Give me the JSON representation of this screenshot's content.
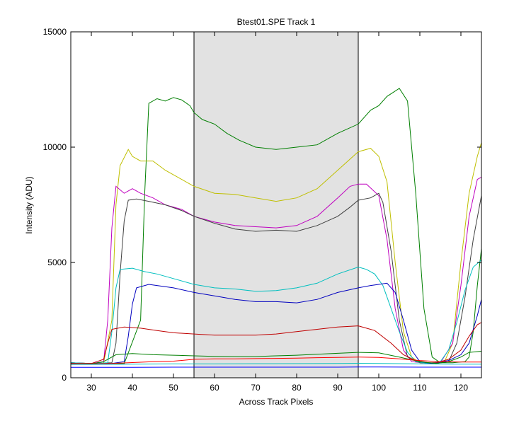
{
  "chart_data": {
    "type": "line",
    "title": "Btest01.SPE   Track 1",
    "xlabel": "Across Track Pixels",
    "ylabel": "Intensity (ADU)",
    "xlim": [
      25,
      125
    ],
    "ylim": [
      0,
      15000
    ],
    "xticks": [
      30,
      40,
      50,
      60,
      70,
      80,
      90,
      100,
      110,
      120
    ],
    "yticks": [
      0,
      5000,
      10000,
      15000
    ],
    "grid": false,
    "legend": "none",
    "shaded_region": {
      "x_start": 55,
      "x_end": 95,
      "color": "#e2e2e2"
    },
    "series": [
      {
        "color": "#007f00",
        "points": [
          [
            25,
            650
          ],
          [
            30,
            620
          ],
          [
            34,
            620
          ],
          [
            38,
            610
          ],
          [
            42,
            2500
          ],
          [
            43,
            8000
          ],
          [
            44,
            11900
          ],
          [
            46,
            12100
          ],
          [
            48,
            12000
          ],
          [
            50,
            12150
          ],
          [
            52,
            12050
          ],
          [
            54,
            11800
          ],
          [
            55,
            11500
          ],
          [
            57,
            11200
          ],
          [
            60,
            11000
          ],
          [
            63,
            10600
          ],
          [
            66,
            10300
          ],
          [
            70,
            10000
          ],
          [
            75,
            9900
          ],
          [
            80,
            10000
          ],
          [
            85,
            10100
          ],
          [
            90,
            10600
          ],
          [
            95,
            11000
          ],
          [
            98,
            11600
          ],
          [
            100,
            11800
          ],
          [
            102,
            12200
          ],
          [
            105,
            12550
          ],
          [
            107,
            12000
          ],
          [
            109,
            8000
          ],
          [
            111,
            3000
          ],
          [
            113,
            900
          ],
          [
            115,
            650
          ],
          [
            118,
            650
          ],
          [
            121,
            700
          ],
          [
            122,
            900
          ],
          [
            123,
            2000
          ],
          [
            124,
            4000
          ],
          [
            125,
            5600
          ]
        ]
      },
      {
        "color": "#bfbf00",
        "points": [
          [
            25,
            650
          ],
          [
            30,
            620
          ],
          [
            33,
            650
          ],
          [
            35,
            2500
          ],
          [
            36,
            7500
          ],
          [
            37,
            9200
          ],
          [
            39,
            9900
          ],
          [
            40,
            9600
          ],
          [
            42,
            9400
          ],
          [
            45,
            9400
          ],
          [
            48,
            9000
          ],
          [
            52,
            8600
          ],
          [
            55,
            8300
          ],
          [
            60,
            8000
          ],
          [
            65,
            7950
          ],
          [
            70,
            7800
          ],
          [
            75,
            7650
          ],
          [
            80,
            7800
          ],
          [
            85,
            8200
          ],
          [
            90,
            9000
          ],
          [
            95,
            9800
          ],
          [
            98,
            9950
          ],
          [
            100,
            9600
          ],
          [
            102,
            8500
          ],
          [
            104,
            5000
          ],
          [
            106,
            2000
          ],
          [
            108,
            900
          ],
          [
            110,
            650
          ],
          [
            113,
            620
          ],
          [
            116,
            700
          ],
          [
            118,
            1500
          ],
          [
            120,
            5000
          ],
          [
            122,
            8000
          ],
          [
            124,
            9600
          ],
          [
            125,
            10200
          ]
        ]
      },
      {
        "color": "#bf00bf",
        "points": [
          [
            25,
            650
          ],
          [
            30,
            620
          ],
          [
            33,
            700
          ],
          [
            34,
            2500
          ],
          [
            35,
            6500
          ],
          [
            36,
            8300
          ],
          [
            38,
            8000
          ],
          [
            40,
            8200
          ],
          [
            42,
            8000
          ],
          [
            45,
            7800
          ],
          [
            48,
            7500
          ],
          [
            52,
            7300
          ],
          [
            55,
            7000
          ],
          [
            60,
            6750
          ],
          [
            65,
            6600
          ],
          [
            70,
            6550
          ],
          [
            75,
            6500
          ],
          [
            80,
            6600
          ],
          [
            85,
            7000
          ],
          [
            90,
            7800
          ],
          [
            93,
            8300
          ],
          [
            95,
            8400
          ],
          [
            97,
            8400
          ],
          [
            100,
            7900
          ],
          [
            102,
            6000
          ],
          [
            104,
            3000
          ],
          [
            106,
            1200
          ],
          [
            108,
            700
          ],
          [
            112,
            620
          ],
          [
            115,
            650
          ],
          [
            118,
            1500
          ],
          [
            120,
            4000
          ],
          [
            122,
            7000
          ],
          [
            124,
            8600
          ],
          [
            125,
            8700
          ]
        ]
      },
      {
        "color": "#404040",
        "points": [
          [
            25,
            650
          ],
          [
            30,
            620
          ],
          [
            35,
            650
          ],
          [
            36,
            1500
          ],
          [
            37,
            4500
          ],
          [
            38,
            6800
          ],
          [
            39,
            7700
          ],
          [
            41,
            7750
          ],
          [
            44,
            7650
          ],
          [
            48,
            7500
          ],
          [
            52,
            7250
          ],
          [
            55,
            7000
          ],
          [
            60,
            6700
          ],
          [
            65,
            6450
          ],
          [
            70,
            6350
          ],
          [
            75,
            6400
          ],
          [
            80,
            6350
          ],
          [
            85,
            6600
          ],
          [
            90,
            7000
          ],
          [
            93,
            7400
          ],
          [
            95,
            7700
          ],
          [
            98,
            7800
          ],
          [
            100,
            8000
          ],
          [
            101,
            7600
          ],
          [
            103,
            5500
          ],
          [
            105,
            2500
          ],
          [
            107,
            900
          ],
          [
            110,
            650
          ],
          [
            114,
            620
          ],
          [
            117,
            700
          ],
          [
            119,
            1500
          ],
          [
            121,
            3500
          ],
          [
            123,
            6000
          ],
          [
            125,
            7900
          ]
        ]
      },
      {
        "color": "#00bfbf",
        "points": [
          [
            25,
            650
          ],
          [
            30,
            620
          ],
          [
            34,
            650
          ],
          [
            35,
            2000
          ],
          [
            36,
            3900
          ],
          [
            37,
            4700
          ],
          [
            40,
            4750
          ],
          [
            43,
            4600
          ],
          [
            46,
            4500
          ],
          [
            50,
            4300
          ],
          [
            55,
            4050
          ],
          [
            60,
            3900
          ],
          [
            65,
            3850
          ],
          [
            70,
            3750
          ],
          [
            75,
            3780
          ],
          [
            80,
            3900
          ],
          [
            85,
            4100
          ],
          [
            90,
            4500
          ],
          [
            95,
            4800
          ],
          [
            97,
            4700
          ],
          [
            99,
            4500
          ],
          [
            101,
            4000
          ],
          [
            103,
            3000
          ],
          [
            105,
            2000
          ],
          [
            107,
            1100
          ],
          [
            109,
            700
          ],
          [
            112,
            620
          ],
          [
            115,
            700
          ],
          [
            117,
            1200
          ],
          [
            119,
            2400
          ],
          [
            121,
            3800
          ],
          [
            123,
            4800
          ],
          [
            125,
            5100
          ]
        ]
      },
      {
        "color": "#0000bf",
        "points": [
          [
            25,
            620
          ],
          [
            30,
            600
          ],
          [
            35,
            620
          ],
          [
            38,
            700
          ],
          [
            39,
            1800
          ],
          [
            40,
            3200
          ],
          [
            41,
            3900
          ],
          [
            44,
            4050
          ],
          [
            46,
            4000
          ],
          [
            50,
            3900
          ],
          [
            55,
            3700
          ],
          [
            60,
            3550
          ],
          [
            65,
            3400
          ],
          [
            70,
            3300
          ],
          [
            75,
            3300
          ],
          [
            80,
            3250
          ],
          [
            85,
            3400
          ],
          [
            90,
            3700
          ],
          [
            95,
            3900
          ],
          [
            98,
            4000
          ],
          [
            100,
            4050
          ],
          [
            102,
            4100
          ],
          [
            104,
            3700
          ],
          [
            106,
            2500
          ],
          [
            108,
            1200
          ],
          [
            110,
            700
          ],
          [
            113,
            620
          ],
          [
            117,
            750
          ],
          [
            120,
            1000
          ],
          [
            122,
            1500
          ],
          [
            124,
            2700
          ],
          [
            125,
            3400
          ]
        ]
      },
      {
        "color": "#bf0000",
        "points": [
          [
            25,
            620
          ],
          [
            30,
            620
          ],
          [
            33,
            800
          ],
          [
            34,
            1500
          ],
          [
            35,
            2100
          ],
          [
            38,
            2200
          ],
          [
            42,
            2150
          ],
          [
            46,
            2050
          ],
          [
            50,
            1950
          ],
          [
            55,
            1900
          ],
          [
            60,
            1850
          ],
          [
            65,
            1850
          ],
          [
            70,
            1850
          ],
          [
            75,
            1900
          ],
          [
            80,
            2000
          ],
          [
            85,
            2100
          ],
          [
            90,
            2200
          ],
          [
            95,
            2250
          ],
          [
            99,
            2050
          ],
          [
            103,
            1500
          ],
          [
            106,
            1000
          ],
          [
            109,
            750
          ],
          [
            112,
            650
          ],
          [
            114,
            650
          ],
          [
            117,
            800
          ],
          [
            120,
            1200
          ],
          [
            122,
            1800
          ],
          [
            124,
            2300
          ],
          [
            125,
            2400
          ]
        ]
      },
      {
        "color": "#007f00",
        "points": [
          [
            25,
            600
          ],
          [
            30,
            600
          ],
          [
            33,
            700
          ],
          [
            36,
            1000
          ],
          [
            40,
            1050
          ],
          [
            45,
            1000
          ],
          [
            50,
            980
          ],
          [
            55,
            950
          ],
          [
            60,
            930
          ],
          [
            65,
            920
          ],
          [
            70,
            920
          ],
          [
            75,
            950
          ],
          [
            80,
            980
          ],
          [
            85,
            1020
          ],
          [
            90,
            1060
          ],
          [
            95,
            1100
          ],
          [
            100,
            1080
          ],
          [
            105,
            900
          ],
          [
            110,
            700
          ],
          [
            114,
            620
          ],
          [
            117,
            700
          ],
          [
            120,
            900
          ],
          [
            122,
            1100
          ],
          [
            125,
            1150
          ]
        ]
      },
      {
        "color": "#ff0000",
        "points": [
          [
            25,
            600
          ],
          [
            30,
            600
          ],
          [
            35,
            620
          ],
          [
            40,
            660
          ],
          [
            45,
            700
          ],
          [
            50,
            720
          ],
          [
            55,
            800
          ],
          [
            60,
            820
          ],
          [
            65,
            820
          ],
          [
            70,
            830
          ],
          [
            75,
            840
          ],
          [
            80,
            850
          ],
          [
            85,
            870
          ],
          [
            90,
            880
          ],
          [
            95,
            900
          ],
          [
            100,
            880
          ],
          [
            105,
            820
          ],
          [
            110,
            750
          ],
          [
            115,
            700
          ],
          [
            120,
            680
          ],
          [
            125,
            680
          ]
        ]
      },
      {
        "color": "#00bfbf",
        "points": [
          [
            25,
            580
          ],
          [
            30,
            580
          ],
          [
            40,
            590
          ],
          [
            50,
            600
          ],
          [
            60,
            600
          ],
          [
            70,
            610
          ],
          [
            80,
            615
          ],
          [
            90,
            620
          ],
          [
            95,
            630
          ],
          [
            100,
            620
          ],
          [
            110,
            600
          ],
          [
            120,
            590
          ],
          [
            125,
            590
          ]
        ]
      },
      {
        "color": "#0000ff",
        "points": [
          [
            25,
            450
          ],
          [
            30,
            450
          ],
          [
            40,
            450
          ],
          [
            50,
            460
          ],
          [
            60,
            460
          ],
          [
            70,
            460
          ],
          [
            80,
            460
          ],
          [
            90,
            460
          ],
          [
            95,
            470
          ],
          [
            100,
            470
          ],
          [
            110,
            460
          ],
          [
            125,
            460
          ]
        ]
      }
    ]
  }
}
